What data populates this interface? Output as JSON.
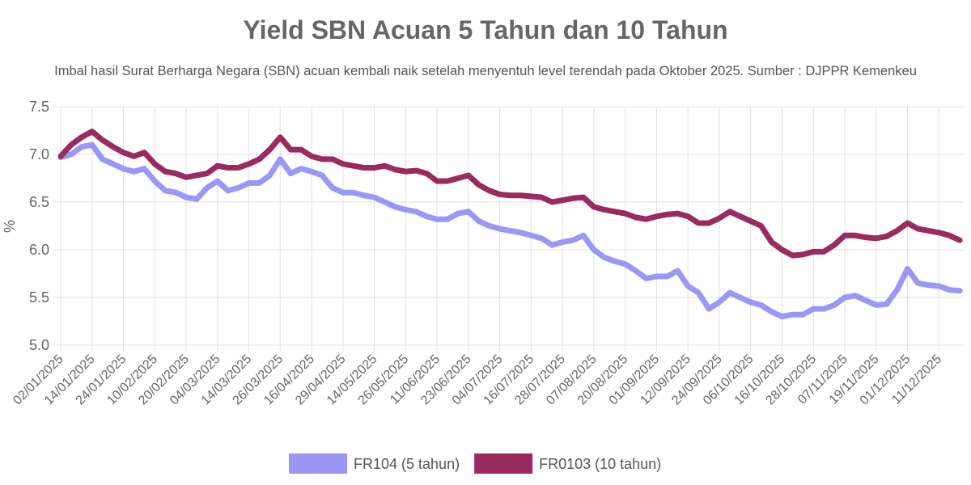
{
  "chart_data": {
    "type": "line",
    "title": "Yield SBN Acuan 5 Tahun dan 10 Tahun",
    "subtitle": "Imbal hasil Surat Berharga Negara (SBN) acuan kembali naik setelah menyentuh level terendah pada Oktober 2025. Sumber : DJPPR Kemenkeu",
    "y_label": "%",
    "categories": [
      "02/01/2025",
      null,
      null,
      "14/01/2025",
      null,
      null,
      "24/01/2025",
      null,
      null,
      "10/02/2025",
      null,
      null,
      "20/02/2025",
      null,
      null,
      "04/03/2025",
      null,
      null,
      "14/03/2025",
      null,
      null,
      "26/03/2025",
      null,
      null,
      "16/04/2025",
      null,
      null,
      "29/04/2025",
      null,
      null,
      "14/05/2025",
      null,
      null,
      "26/05/2025",
      null,
      null,
      "11/06/2025",
      null,
      null,
      "23/06/2025",
      null,
      null,
      "04/07/2025",
      null,
      null,
      "16/07/2025",
      null,
      null,
      "28/07/2025",
      null,
      null,
      "07/08/2025",
      null,
      null,
      "20/08/2025",
      null,
      null,
      "01/09/2025",
      null,
      null,
      "12/09/2025",
      null,
      null,
      "24/09/2025",
      null,
      null,
      "06/10/2025",
      null,
      null,
      "16/10/2025",
      null,
      null,
      "28/10/2025",
      null,
      null,
      "07/11/2025",
      null,
      null,
      "19/11/2025",
      null,
      null,
      "01/12/2025",
      null,
      null,
      "11/12/2025",
      null,
      null
    ],
    "series": [
      {
        "name": "FR104 (5 tahun)",
        "color": "#9b97f7",
        "values": [
          6.97,
          7.0,
          7.08,
          7.1,
          6.95,
          6.9,
          6.85,
          6.82,
          6.85,
          6.72,
          6.62,
          6.6,
          6.55,
          6.53,
          6.65,
          6.72,
          6.62,
          6.65,
          6.7,
          6.7,
          6.78,
          6.95,
          6.8,
          6.85,
          6.82,
          6.78,
          6.65,
          6.6,
          6.6,
          6.57,
          6.55,
          6.5,
          6.45,
          6.42,
          6.4,
          6.35,
          6.32,
          6.32,
          6.38,
          6.4,
          6.3,
          6.25,
          6.22,
          6.2,
          6.18,
          6.15,
          6.12,
          6.05,
          6.08,
          6.1,
          6.15,
          6.0,
          5.92,
          5.88,
          5.85,
          5.78,
          5.7,
          5.72,
          5.72,
          5.78,
          5.62,
          5.55,
          5.38,
          5.45,
          5.55,
          5.5,
          5.45,
          5.42,
          5.35,
          5.3,
          5.32,
          5.32,
          5.38,
          5.38,
          5.42,
          5.5,
          5.52,
          5.47,
          5.42,
          5.43,
          5.58,
          5.8,
          5.65,
          5.63,
          5.62,
          5.58,
          5.57
        ]
      },
      {
        "name": "FR0103 (10 tahun)",
        "color": "#9a2b5e",
        "values": [
          6.98,
          7.1,
          7.18,
          7.24,
          7.15,
          7.08,
          7.02,
          6.98,
          7.02,
          6.9,
          6.82,
          6.8,
          6.76,
          6.78,
          6.8,
          6.88,
          6.86,
          6.86,
          6.9,
          6.95,
          7.05,
          7.18,
          7.05,
          7.05,
          6.98,
          6.95,
          6.95,
          6.9,
          6.88,
          6.86,
          6.86,
          6.88,
          6.84,
          6.82,
          6.83,
          6.8,
          6.72,
          6.72,
          6.75,
          6.78,
          6.68,
          6.62,
          6.58,
          6.57,
          6.57,
          6.56,
          6.55,
          6.5,
          6.52,
          6.54,
          6.55,
          6.45,
          6.42,
          6.4,
          6.38,
          6.34,
          6.32,
          6.35,
          6.37,
          6.38,
          6.35,
          6.28,
          6.28,
          6.33,
          6.4,
          6.35,
          6.3,
          6.25,
          6.08,
          6.0,
          5.94,
          5.95,
          5.98,
          5.98,
          6.05,
          6.15,
          6.15,
          6.13,
          6.12,
          6.14,
          6.2,
          6.28,
          6.22,
          6.2,
          6.18,
          6.15,
          6.1
        ]
      }
    ],
    "ylim": [
      5.0,
      7.5
    ],
    "yticks": [
      {
        "value": 5.0,
        "label": "5.0"
      },
      5.5,
      {
        "value": 6.0,
        "label": "6.0"
      },
      6.5,
      {
        "value": 7.0,
        "label": "7.0"
      },
      7.5
    ],
    "grid": true
  }
}
